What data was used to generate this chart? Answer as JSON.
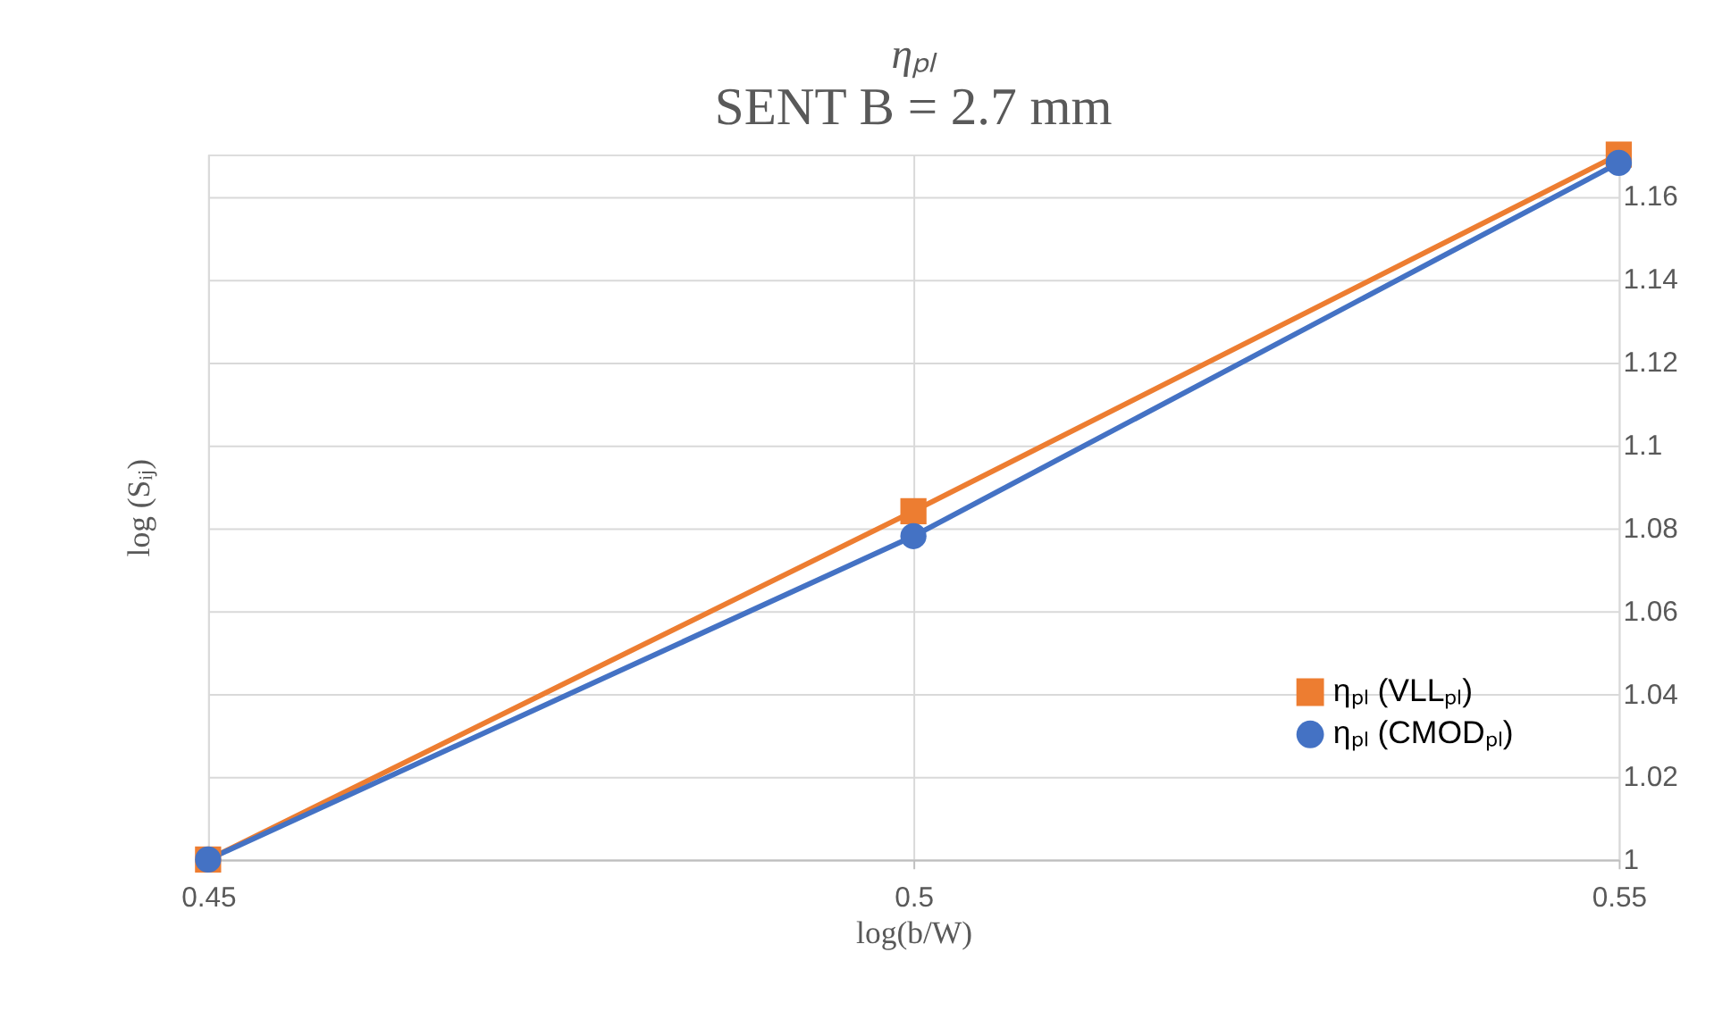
{
  "chart_data": {
    "type": "line",
    "title": "ηₚₗ",
    "subtitle": "SENT B = 2.7 mm",
    "xlabel": "log(b/W)",
    "ylabel": "log (Sᵢⱼ)",
    "x": [
      0.45,
      0.5,
      0.55
    ],
    "series": [
      {
        "name": "ηₚₗ (VLLₚₗ)",
        "color": "#ed7d31",
        "marker": "square",
        "values": [
          1.0,
          1.084,
          1.17
        ]
      },
      {
        "name": "ηₚₗ (CMODₚₗ)",
        "color": "#4472c4",
        "marker": "circle",
        "values": [
          1.0,
          1.078,
          1.168
        ]
      }
    ],
    "xlim": [
      0.45,
      0.55
    ],
    "xticks": [
      0.45,
      0.5,
      0.55
    ],
    "ylim": [
      1.0,
      1.17
    ],
    "yticks": [
      1,
      1.02,
      1.04,
      1.06,
      1.08,
      1.1,
      1.12,
      1.14,
      1.16
    ],
    "grid": true,
    "legend": "bottom right",
    "line_style": "solid"
  }
}
